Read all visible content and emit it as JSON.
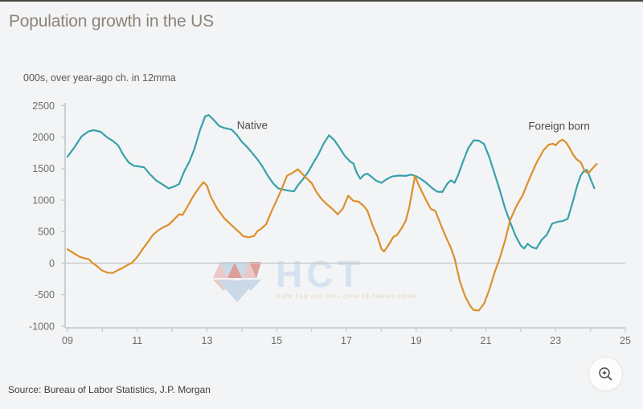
{
  "page": {
    "title": "Population growth in the US",
    "subtitle": "000s, over year-ago ch. in 12mma",
    "source": "Source: Bureau of Labor Statistics, J.P. Morgan"
  },
  "watermark": {
    "text": "HCT",
    "slogan": "KIẾN TẠO GIÁ TRỊ - CHIA SẺ THÀNH CÔNG"
  },
  "zoom_button": {
    "icon": "magnifier-plus-icon"
  },
  "chart_data": {
    "type": "line",
    "title": "Population growth in the US",
    "ylabel": "000s, over year-ago ch. in 12mma",
    "xlim": [
      9,
      25
    ],
    "ylim": [
      -1000,
      2500
    ],
    "grid": "zero-line-only",
    "legend_position": "inline-labels",
    "axis_color": "#ccd0d3",
    "zero_line_color": "#c6c8ca",
    "tick_text_color": "#6e6e6e",
    "y_ticks": [
      2500,
      2000,
      1500,
      1000,
      500,
      0,
      -500,
      -1000
    ],
    "x_tick_labels": [
      {
        "year": 9,
        "label": "09"
      },
      {
        "year": 11,
        "label": "11"
      },
      {
        "year": 13,
        "label": "13"
      },
      {
        "year": 15,
        "label": "15"
      },
      {
        "year": 17,
        "label": "17"
      },
      {
        "year": 19,
        "label": "19"
      },
      {
        "year": 21,
        "label": "21"
      },
      {
        "year": 23,
        "label": "23"
      },
      {
        "year": 25,
        "label": "25"
      }
    ],
    "minor_tick_years": [
      9,
      10,
      11,
      12,
      13,
      14,
      15,
      16,
      17,
      18,
      19,
      20,
      21,
      22,
      23,
      24,
      25
    ],
    "annotations": [
      {
        "text": "Native",
        "year": 14.3,
        "value": 2190
      },
      {
        "text": "Foreign born",
        "year": 23.1,
        "value": 2180
      }
    ],
    "series": [
      {
        "name": "Native",
        "color": "#38a0ab",
        "points": [
          [
            9.0,
            1690
          ],
          [
            9.2,
            1840
          ],
          [
            9.4,
            2010
          ],
          [
            9.6,
            2090
          ],
          [
            9.75,
            2110
          ],
          [
            9.95,
            2085
          ],
          [
            10.15,
            1990
          ],
          [
            10.3,
            1940
          ],
          [
            10.45,
            1870
          ],
          [
            10.6,
            1720
          ],
          [
            10.75,
            1600
          ],
          [
            10.9,
            1545
          ],
          [
            11.05,
            1535
          ],
          [
            11.2,
            1520
          ],
          [
            11.35,
            1420
          ],
          [
            11.55,
            1310
          ],
          [
            11.75,
            1240
          ],
          [
            11.9,
            1185
          ],
          [
            12.05,
            1215
          ],
          [
            12.2,
            1255
          ],
          [
            12.35,
            1460
          ],
          [
            12.5,
            1615
          ],
          [
            12.65,
            1830
          ],
          [
            12.8,
            2110
          ],
          [
            12.95,
            2330
          ],
          [
            13.05,
            2350
          ],
          [
            13.2,
            2270
          ],
          [
            13.35,
            2175
          ],
          [
            13.5,
            2145
          ],
          [
            13.7,
            2120
          ],
          [
            13.85,
            2040
          ],
          [
            14.0,
            1925
          ],
          [
            14.15,
            1845
          ],
          [
            14.3,
            1745
          ],
          [
            14.45,
            1645
          ],
          [
            14.6,
            1525
          ],
          [
            14.75,
            1385
          ],
          [
            14.9,
            1265
          ],
          [
            15.05,
            1185
          ],
          [
            15.2,
            1165
          ],
          [
            15.35,
            1150
          ],
          [
            15.5,
            1140
          ],
          [
            15.6,
            1230
          ],
          [
            15.75,
            1330
          ],
          [
            15.9,
            1445
          ],
          [
            16.05,
            1590
          ],
          [
            16.2,
            1730
          ],
          [
            16.35,
            1900
          ],
          [
            16.5,
            2030
          ],
          [
            16.65,
            1955
          ],
          [
            16.8,
            1835
          ],
          [
            16.95,
            1705
          ],
          [
            17.1,
            1615
          ],
          [
            17.2,
            1580
          ],
          [
            17.3,
            1430
          ],
          [
            17.4,
            1340
          ],
          [
            17.5,
            1400
          ],
          [
            17.6,
            1420
          ],
          [
            17.7,
            1380
          ],
          [
            17.85,
            1310
          ],
          [
            18.0,
            1275
          ],
          [
            18.15,
            1330
          ],
          [
            18.3,
            1375
          ],
          [
            18.5,
            1390
          ],
          [
            18.7,
            1385
          ],
          [
            18.85,
            1405
          ],
          [
            19.0,
            1380
          ],
          [
            19.15,
            1330
          ],
          [
            19.3,
            1270
          ],
          [
            19.45,
            1195
          ],
          [
            19.6,
            1135
          ],
          [
            19.75,
            1130
          ],
          [
            19.9,
            1265
          ],
          [
            20.0,
            1315
          ],
          [
            20.1,
            1275
          ],
          [
            20.2,
            1390
          ],
          [
            20.35,
            1620
          ],
          [
            20.5,
            1830
          ],
          [
            20.65,
            1950
          ],
          [
            20.8,
            1945
          ],
          [
            20.95,
            1890
          ],
          [
            21.1,
            1680
          ],
          [
            21.25,
            1420
          ],
          [
            21.4,
            1160
          ],
          [
            21.55,
            870
          ],
          [
            21.7,
            645
          ],
          [
            21.85,
            435
          ],
          [
            22.0,
            280
          ],
          [
            22.1,
            232
          ],
          [
            22.2,
            308
          ],
          [
            22.32,
            252
          ],
          [
            22.45,
            232
          ],
          [
            22.6,
            370
          ],
          [
            22.75,
            450
          ],
          [
            22.9,
            625
          ],
          [
            23.05,
            655
          ],
          [
            23.2,
            668
          ],
          [
            23.35,
            705
          ],
          [
            23.5,
            985
          ],
          [
            23.62,
            1230
          ],
          [
            23.72,
            1390
          ],
          [
            23.82,
            1470
          ],
          [
            23.9,
            1480
          ],
          [
            24.0,
            1340
          ],
          [
            24.11,
            1190
          ]
        ]
      },
      {
        "name": "Foreign born",
        "color": "#dd8f2a",
        "points": [
          [
            9.0,
            220
          ],
          [
            9.2,
            150
          ],
          [
            9.35,
            100
          ],
          [
            9.5,
            75
          ],
          [
            9.6,
            65
          ],
          [
            9.7,
            10
          ],
          [
            9.85,
            -50
          ],
          [
            10.0,
            -120
          ],
          [
            10.15,
            -150
          ],
          [
            10.3,
            -155
          ],
          [
            10.45,
            -110
          ],
          [
            10.6,
            -70
          ],
          [
            10.75,
            -20
          ],
          [
            10.85,
            5
          ],
          [
            11.0,
            100
          ],
          [
            11.15,
            220
          ],
          [
            11.3,
            330
          ],
          [
            11.45,
            450
          ],
          [
            11.6,
            520
          ],
          [
            11.75,
            570
          ],
          [
            11.9,
            610
          ],
          [
            12.05,
            690
          ],
          [
            12.2,
            775
          ],
          [
            12.3,
            765
          ],
          [
            12.45,
            905
          ],
          [
            12.6,
            1055
          ],
          [
            12.75,
            1180
          ],
          [
            12.9,
            1285
          ],
          [
            13.0,
            1230
          ],
          [
            13.1,
            1065
          ],
          [
            13.3,
            860
          ],
          [
            13.5,
            710
          ],
          [
            13.7,
            605
          ],
          [
            13.9,
            505
          ],
          [
            14.05,
            425
          ],
          [
            14.2,
            412
          ],
          [
            14.35,
            430
          ],
          [
            14.45,
            510
          ],
          [
            14.55,
            545
          ],
          [
            14.7,
            620
          ],
          [
            14.85,
            820
          ],
          [
            15.0,
            1000
          ],
          [
            15.15,
            1190
          ],
          [
            15.3,
            1390
          ],
          [
            15.45,
            1430
          ],
          [
            15.6,
            1490
          ],
          [
            15.7,
            1440
          ],
          [
            15.85,
            1350
          ],
          [
            16.0,
            1275
          ],
          [
            16.15,
            1120
          ],
          [
            16.3,
            1010
          ],
          [
            16.45,
            930
          ],
          [
            16.6,
            860
          ],
          [
            16.75,
            775
          ],
          [
            16.9,
            870
          ],
          [
            17.05,
            1070
          ],
          [
            17.2,
            990
          ],
          [
            17.35,
            975
          ],
          [
            17.5,
            905
          ],
          [
            17.6,
            835
          ],
          [
            17.75,
            600
          ],
          [
            17.9,
            410
          ],
          [
            18.0,
            230
          ],
          [
            18.08,
            185
          ],
          [
            18.2,
            280
          ],
          [
            18.35,
            420
          ],
          [
            18.45,
            445
          ],
          [
            18.6,
            570
          ],
          [
            18.7,
            670
          ],
          [
            18.8,
            880
          ],
          [
            18.9,
            1180
          ],
          [
            18.97,
            1385
          ],
          [
            19.05,
            1270
          ],
          [
            19.15,
            1150
          ],
          [
            19.3,
            985
          ],
          [
            19.42,
            860
          ],
          [
            19.55,
            830
          ],
          [
            19.7,
            620
          ],
          [
            19.85,
            420
          ],
          [
            20.0,
            240
          ],
          [
            20.1,
            80
          ],
          [
            20.25,
            -280
          ],
          [
            20.4,
            -520
          ],
          [
            20.55,
            -680
          ],
          [
            20.65,
            -745
          ],
          [
            20.8,
            -750
          ],
          [
            20.95,
            -640
          ],
          [
            21.1,
            -420
          ],
          [
            21.25,
            -150
          ],
          [
            21.4,
            80
          ],
          [
            21.55,
            360
          ],
          [
            21.7,
            690
          ],
          [
            21.9,
            930
          ],
          [
            22.05,
            1070
          ],
          [
            22.25,
            1340
          ],
          [
            22.45,
            1590
          ],
          [
            22.65,
            1790
          ],
          [
            22.8,
            1880
          ],
          [
            22.92,
            1895
          ],
          [
            23.0,
            1870
          ],
          [
            23.1,
            1930
          ],
          [
            23.2,
            1960
          ],
          [
            23.3,
            1915
          ],
          [
            23.4,
            1830
          ],
          [
            23.5,
            1725
          ],
          [
            23.6,
            1650
          ],
          [
            23.72,
            1600
          ],
          [
            23.85,
            1450
          ],
          [
            23.95,
            1435
          ],
          [
            24.05,
            1500
          ],
          [
            24.18,
            1575
          ]
        ]
      }
    ]
  }
}
